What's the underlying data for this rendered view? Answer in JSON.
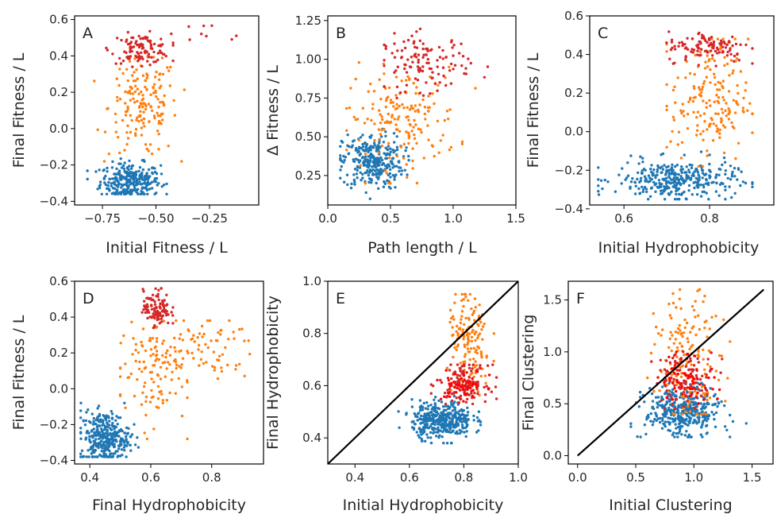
{
  "colors": {
    "blue": "#1f77b4",
    "orange": "#ff7f0e",
    "red": "#d62728",
    "bright_red": "#ff0000",
    "diagonal": "#000000"
  },
  "chart_data": [
    {
      "panel": "A",
      "type": "scatter",
      "xlabel": "Initial Fitness / L",
      "ylabel": "Final Fitness / L",
      "xlim": [
        -0.88,
        -0.02
      ],
      "ylim": [
        -0.42,
        0.62
      ],
      "xticks": [
        -0.75,
        -0.5,
        -0.25
      ],
      "xtick_labels": [
        "−0.75",
        "−0.50",
        "−0.25"
      ],
      "yticks": [
        -0.4,
        -0.2,
        0.0,
        0.2,
        0.4,
        0.6
      ],
      "ytick_labels": [
        "−0.4",
        "−0.2",
        "0.0",
        "0.2",
        "0.4",
        "0.6"
      ],
      "grid": false,
      "diagonal": false,
      "clusters": [
        {
          "color": "blue",
          "n": 300,
          "x": [
            -0.62,
            0.07
          ],
          "y": [
            -0.29,
            0.05
          ],
          "xr": [
            -0.82,
            -0.45
          ],
          "yr": [
            -0.36,
            -0.08
          ]
        },
        {
          "color": "orange",
          "n": 170,
          "x": [
            -0.56,
            0.08
          ],
          "y": [
            0.12,
            0.14
          ],
          "xr": [
            -0.8,
            -0.36
          ],
          "yr": [
            -0.18,
            0.4
          ]
        },
        {
          "color": "red",
          "n": 110,
          "x": [
            -0.57,
            0.07
          ],
          "y": [
            0.44,
            0.04
          ],
          "xr": [
            -0.8,
            -0.42
          ],
          "yr": [
            0.34,
            0.55
          ]
        },
        {
          "color": "red",
          "n": 8,
          "x": [
            -0.3,
            0.12
          ],
          "y": [
            0.5,
            0.04
          ],
          "xr": [
            -0.45,
            -0.05
          ],
          "yr": [
            0.42,
            0.57
          ]
        }
      ]
    },
    {
      "panel": "B",
      "type": "scatter",
      "xlabel": "Path length / L",
      "ylabel": "Δ Fitness / L",
      "xlim": [
        0.0,
        1.5
      ],
      "ylim": [
        0.06,
        1.28
      ],
      "xticks": [
        0.0,
        0.5,
        1.0,
        1.5
      ],
      "xtick_labels": [
        "0.0",
        "0.5",
        "1.0",
        "1.5"
      ],
      "yticks": [
        0.25,
        0.5,
        0.75,
        1.0,
        1.25
      ],
      "ytick_labels": [
        "0.25",
        "0.50",
        "0.75",
        "1.00",
        "1.25"
      ],
      "grid": false,
      "diagonal": false,
      "clusters": [
        {
          "color": "blue",
          "n": 300,
          "x": [
            0.36,
            0.12
          ],
          "y": [
            0.34,
            0.09
          ],
          "xr": [
            0.1,
            0.75
          ],
          "yr": [
            0.1,
            0.65
          ]
        },
        {
          "color": "orange",
          "n": 170,
          "x": [
            0.6,
            0.22
          ],
          "y": [
            0.62,
            0.16
          ],
          "xr": [
            0.15,
            1.45
          ],
          "yr": [
            0.2,
            1.0
          ]
        },
        {
          "color": "red",
          "n": 120,
          "x": [
            0.78,
            0.18
          ],
          "y": [
            0.98,
            0.09
          ],
          "xr": [
            0.45,
            1.4
          ],
          "yr": [
            0.75,
            1.22
          ]
        }
      ]
    },
    {
      "panel": "C",
      "type": "scatter",
      "xlabel": "Initial Hydrophobicity",
      "ylabel": "Final Fitness / L",
      "xlim": [
        0.52,
        0.95
      ],
      "ylim": [
        -0.38,
        0.6
      ],
      "xticks": [
        0.6,
        0.8
      ],
      "xtick_labels": [
        "0.6",
        "0.8"
      ],
      "yticks": [
        -0.4,
        -0.2,
        0.0,
        0.2,
        0.4,
        0.6
      ],
      "ytick_labels": [
        "−0.4",
        "−0.2",
        "0.0",
        "0.2",
        "0.4",
        "0.6"
      ],
      "grid": false,
      "diagonal": false,
      "clusters": [
        {
          "color": "blue",
          "n": 330,
          "x": [
            0.72,
            0.07
          ],
          "y": [
            -0.25,
            0.05
          ],
          "xr": [
            0.54,
            0.9
          ],
          "yr": [
            -0.35,
            -0.05
          ]
        },
        {
          "color": "orange",
          "n": 180,
          "x": [
            0.8,
            0.045
          ],
          "y": [
            0.16,
            0.16
          ],
          "xr": [
            0.7,
            0.9
          ],
          "yr": [
            -0.18,
            0.48
          ]
        },
        {
          "color": "red",
          "n": 110,
          "x": [
            0.8,
            0.05
          ],
          "y": [
            0.44,
            0.04
          ],
          "xr": [
            0.68,
            0.9
          ],
          "yr": [
            0.34,
            0.54
          ]
        }
      ]
    },
    {
      "panel": "D",
      "type": "scatter",
      "xlabel": "Final Hydrophobicity",
      "ylabel": "Final Fitness / L",
      "xlim": [
        0.35,
        0.97
      ],
      "ylim": [
        -0.42,
        0.6
      ],
      "xticks": [
        0.4,
        0.6,
        0.8
      ],
      "xtick_labels": [
        "0.4",
        "0.6",
        "0.8"
      ],
      "yticks": [
        -0.4,
        -0.2,
        0.0,
        0.2,
        0.4,
        0.6
      ],
      "ytick_labels": [
        "−0.4",
        "−0.2",
        "0.0",
        "0.2",
        "0.4",
        "0.6"
      ],
      "grid": false,
      "diagonal": false,
      "clusters": [
        {
          "color": "blue",
          "n": 330,
          "x": [
            0.45,
            0.04
          ],
          "y": [
            -0.27,
            0.07
          ],
          "xr": [
            0.37,
            0.56
          ],
          "yr": [
            -0.38,
            -0.08
          ]
        },
        {
          "color": "orange",
          "n": 110,
          "x": [
            0.6,
            0.06
          ],
          "y": [
            0.1,
            0.15
          ],
          "xr": [
            0.5,
            0.72
          ],
          "yr": [
            -0.28,
            0.42
          ]
        },
        {
          "color": "orange",
          "n": 80,
          "x": [
            0.75,
            0.1
          ],
          "y": [
            0.22,
            0.09
          ],
          "xr": [
            0.62,
            0.96
          ],
          "yr": [
            0.05,
            0.38
          ]
        },
        {
          "color": "red",
          "n": 110,
          "x": [
            0.62,
            0.022
          ],
          "y": [
            0.45,
            0.05
          ],
          "xr": [
            0.56,
            0.68
          ],
          "yr": [
            0.34,
            0.56
          ]
        }
      ]
    },
    {
      "panel": "E",
      "type": "scatter",
      "xlabel": "Initial Hydrophobicity",
      "ylabel": "Final Hydrophobicity",
      "xlim": [
        0.3,
        1.0
      ],
      "ylim": [
        0.3,
        1.0
      ],
      "xticks": [
        0.4,
        0.6,
        0.8,
        1.0
      ],
      "xtick_labels": [
        "0.4",
        "0.6",
        "0.8",
        "1.0"
      ],
      "yticks": [
        0.4,
        0.6,
        0.8,
        1.0
      ],
      "ytick_labels": [
        "0.4",
        "0.6",
        "0.8",
        "1.0"
      ],
      "grid": false,
      "diagonal": true,
      "clusters": [
        {
          "color": "blue",
          "n": 380,
          "x": [
            0.72,
            0.055
          ],
          "y": [
            0.47,
            0.035
          ],
          "xr": [
            0.56,
            0.88
          ],
          "yr": [
            0.38,
            0.56
          ]
        },
        {
          "color": "orange",
          "n": 150,
          "x": [
            0.82,
            0.04
          ],
          "y": [
            0.76,
            0.1
          ],
          "xr": [
            0.72,
            0.92
          ],
          "yr": [
            0.55,
            0.95
          ]
        },
        {
          "color": "red",
          "n": 130,
          "x": [
            0.8,
            0.045
          ],
          "y": [
            0.61,
            0.035
          ],
          "xr": [
            0.68,
            0.92
          ],
          "yr": [
            0.53,
            0.68
          ]
        },
        {
          "color": "bright_red",
          "n": 50,
          "x": [
            0.8,
            0.04
          ],
          "y": [
            0.6,
            0.03
          ],
          "xr": [
            0.7,
            0.9
          ],
          "yr": [
            0.54,
            0.66
          ]
        }
      ]
    },
    {
      "panel": "F",
      "type": "scatter",
      "xlabel": "Initial Clustering",
      "ylabel": "Final Clustering",
      "xlim": [
        -0.08,
        1.68
      ],
      "ylim": [
        -0.08,
        1.68
      ],
      "xticks": [
        0.0,
        0.5,
        1.0,
        1.5
      ],
      "xtick_labels": [
        "0.0",
        "0.5",
        "1.0",
        "1.5"
      ],
      "yticks": [
        0.0,
        0.5,
        1.0,
        1.5
      ],
      "ytick_labels": [
        "0.0",
        "0.5",
        "1.0",
        "1.5"
      ],
      "grid": false,
      "diagonal": true,
      "clusters": [
        {
          "color": "blue",
          "n": 380,
          "x": [
            0.9,
            0.16
          ],
          "y": [
            0.42,
            0.12
          ],
          "xr": [
            0.45,
            1.45
          ],
          "yr": [
            0.18,
            0.7
          ]
        },
        {
          "color": "orange",
          "n": 160,
          "x": [
            0.95,
            0.14
          ],
          "y": [
            0.95,
            0.3
          ],
          "xr": [
            0.6,
            1.4
          ],
          "yr": [
            0.4,
            1.6
          ]
        },
        {
          "color": "red",
          "n": 110,
          "x": [
            0.92,
            0.13
          ],
          "y": [
            0.75,
            0.13
          ],
          "xr": [
            0.6,
            1.3
          ],
          "yr": [
            0.45,
            1.05
          ]
        },
        {
          "color": "bright_red",
          "n": 60,
          "x": [
            0.95,
            0.12
          ],
          "y": [
            0.74,
            0.12
          ],
          "xr": [
            0.65,
            1.25
          ],
          "yr": [
            0.5,
            1.0
          ]
        }
      ]
    }
  ]
}
